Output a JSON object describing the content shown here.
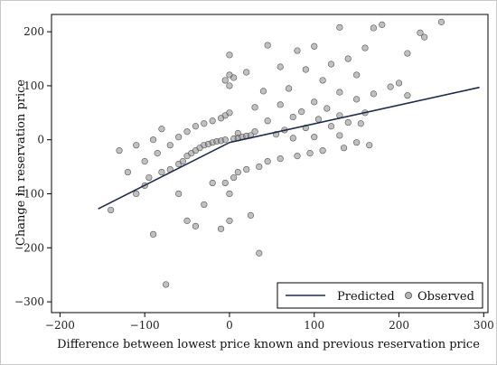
{
  "chart_data": {
    "type": "scatter",
    "xlabel": "Difference between lowest price known and previous reservation price",
    "ylabel": "Change in reservation price",
    "xlim": [
      -210,
      305
    ],
    "ylim": [
      -320,
      232
    ],
    "xticks": [
      -200,
      -100,
      0,
      100,
      200,
      300
    ],
    "yticks": [
      -300,
      -200,
      -100,
      0,
      100,
      200
    ],
    "tick_labels": {
      "x": [
        "−200",
        "−100",
        "0",
        "100",
        "200",
        "300"
      ],
      "y": [
        "−300",
        "−200",
        "−100",
        "0",
        "100",
        "200"
      ]
    },
    "grid": false,
    "legend_position": "bottom-right",
    "colors": {
      "predicted": "#1f2a4a",
      "observed_fill": "#8c8c8c",
      "observed_stroke": "#555555"
    },
    "series": [
      {
        "name": "Predicted",
        "type": "line",
        "x": [
          -155,
          0,
          295
        ],
        "y": [
          -128,
          -5,
          97
        ]
      },
      {
        "name": "Observed",
        "type": "scatter",
        "points": [
          [
            250,
            218
          ],
          [
            180,
            213
          ],
          [
            130,
            208
          ],
          [
            170,
            207
          ],
          [
            225,
            198
          ],
          [
            230,
            190
          ],
          [
            45,
            175
          ],
          [
            100,
            173
          ],
          [
            160,
            170
          ],
          [
            80,
            165
          ],
          [
            210,
            160
          ],
          [
            0,
            157
          ],
          [
            140,
            150
          ],
          [
            120,
            140
          ],
          [
            60,
            135
          ],
          [
            90,
            130
          ],
          [
            20,
            125
          ],
          [
            150,
            120
          ],
          [
            110,
            110
          ],
          [
            200,
            105
          ],
          [
            190,
            98
          ],
          [
            70,
            95
          ],
          [
            40,
            90
          ],
          [
            130,
            88
          ],
          [
            170,
            85
          ],
          [
            210,
            82
          ],
          [
            150,
            75
          ],
          [
            100,
            70
          ],
          [
            60,
            65
          ],
          [
            30,
            60
          ],
          [
            115,
            58
          ],
          [
            85,
            52
          ],
          [
            160,
            50
          ],
          [
            130,
            45
          ],
          [
            75,
            42
          ],
          [
            105,
            38
          ],
          [
            45,
            35
          ],
          [
            140,
            32
          ],
          [
            155,
            30
          ],
          [
            120,
            25
          ],
          [
            90,
            22
          ],
          [
            65,
            18
          ],
          [
            30,
            15
          ],
          [
            10,
            12
          ],
          [
            55,
            10
          ],
          [
            130,
            8
          ],
          [
            100,
            5
          ],
          [
            75,
            3
          ],
          [
            150,
            -5
          ],
          [
            165,
            -10
          ],
          [
            135,
            -15
          ],
          [
            110,
            -20
          ],
          [
            95,
            -25
          ],
          [
            80,
            -30
          ],
          [
            60,
            -35
          ],
          [
            45,
            -40
          ],
          [
            35,
            -50
          ],
          [
            20,
            -55
          ],
          [
            10,
            -60
          ],
          [
            5,
            -70
          ],
          [
            -5,
            -80
          ],
          [
            0,
            -100
          ],
          [
            0,
            -150
          ],
          [
            -10,
            -165
          ],
          [
            25,
            -140
          ],
          [
            35,
            -210
          ],
          [
            -75,
            -268
          ],
          [
            -90,
            -175
          ],
          [
            -140,
            -130
          ],
          [
            -110,
            -100
          ],
          [
            -100,
            -85
          ],
          [
            -95,
            -70
          ],
          [
            -80,
            -60
          ],
          [
            -70,
            -55
          ],
          [
            -60,
            -45
          ],
          [
            -55,
            -40
          ],
          [
            -50,
            -30
          ],
          [
            -45,
            -25
          ],
          [
            -40,
            -20
          ],
          [
            -35,
            -15
          ],
          [
            -30,
            -10
          ],
          [
            -25,
            -8
          ],
          [
            -20,
            -5
          ],
          [
            -15,
            -3
          ],
          [
            -10,
            -2
          ],
          [
            -5,
            0
          ],
          [
            5,
            2
          ],
          [
            10,
            3
          ],
          [
            15,
            5
          ],
          [
            20,
            7
          ],
          [
            25,
            8
          ],
          [
            -120,
            -60
          ],
          [
            -100,
            -40
          ],
          [
            -85,
            -25
          ],
          [
            -70,
            -10
          ],
          [
            -60,
            5
          ],
          [
            -50,
            15
          ],
          [
            -40,
            25
          ],
          [
            -30,
            30
          ],
          [
            -20,
            35
          ],
          [
            -10,
            40
          ],
          [
            -5,
            45
          ],
          [
            0,
            50
          ],
          [
            -90,
            0
          ],
          [
            -110,
            -10
          ],
          [
            -130,
            -20
          ],
          [
            -80,
            20
          ],
          [
            -60,
            -100
          ],
          [
            -50,
            -150
          ],
          [
            -40,
            -160
          ],
          [
            -30,
            -120
          ],
          [
            -20,
            -80
          ],
          [
            0,
            100
          ],
          [
            0,
            120
          ],
          [
            5,
            115
          ],
          [
            -5,
            110
          ]
        ]
      }
    ]
  },
  "legend": {
    "predicted_label": "Predicted",
    "observed_label": "Observed"
  }
}
